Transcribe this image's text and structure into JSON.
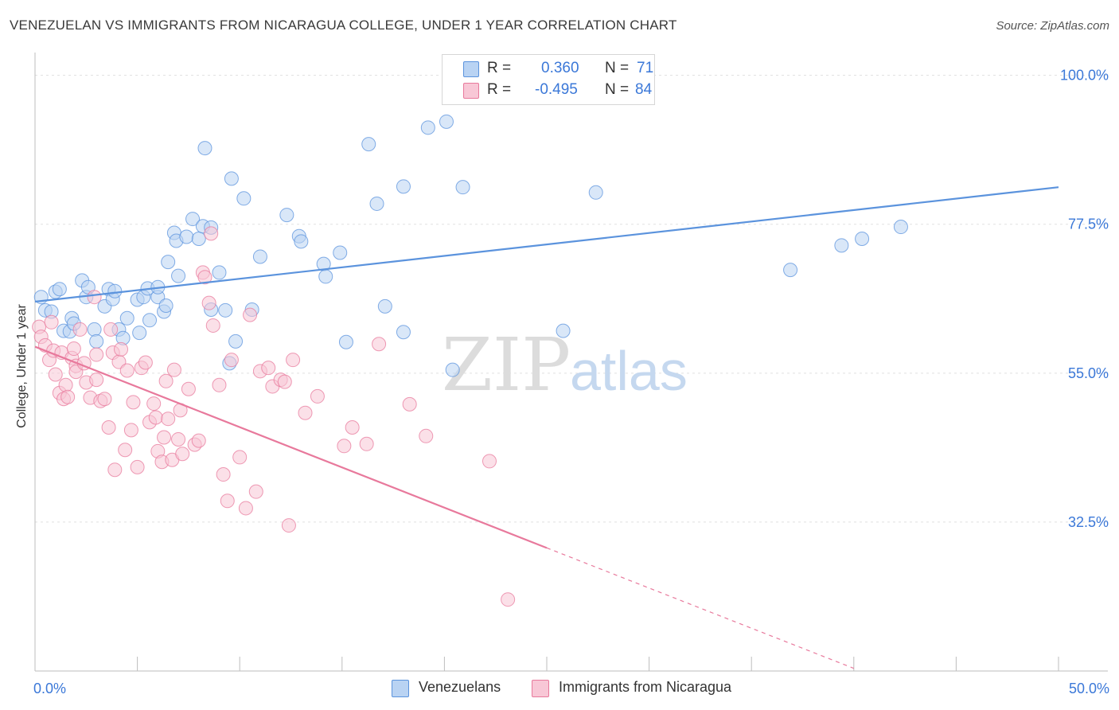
{
  "title": "VENEZUELAN VS IMMIGRANTS FROM NICARAGUA COLLEGE, UNDER 1 YEAR CORRELATION CHART",
  "source": "Source: ZipAtlas.com",
  "watermark": {
    "zip": "ZIP",
    "atlas": "atlas"
  },
  "legend": {
    "rows": [
      {
        "r_label": "R =",
        "r_value": "0.360",
        "n_label": "N =",
        "n_value": "71",
        "color": "#5b93dd",
        "fill": "#b9d3f3"
      },
      {
        "r_label": "R =",
        "r_value": "-0.495",
        "n_label": "N =",
        "n_value": "84",
        "color": "#e8799c",
        "fill": "#f8c7d6"
      }
    ]
  },
  "bottom_legend": [
    {
      "label": "Venezuelans",
      "fill": "#b9d3f3",
      "stroke": "#5b93dd"
    },
    {
      "label": "Immigrants from Nicaragua",
      "fill": "#f8c7d6",
      "stroke": "#e8799c"
    }
  ],
  "chart_data": {
    "type": "scatter",
    "title": "VENEZUELAN VS IMMIGRANTS FROM NICARAGUA COLLEGE, UNDER 1 YEAR CORRELATION CHART",
    "xlabel": "",
    "ylabel": "College, Under 1 year",
    "xlim": [
      0,
      50
    ],
    "ylim": [
      10,
      102
    ],
    "x_tick_labels": [
      {
        "value": 0,
        "label": "0.0%"
      },
      {
        "value": 50,
        "label": "50.0%"
      }
    ],
    "y_tick_labels": [
      {
        "value": 100,
        "label": "100.0%"
      },
      {
        "value": 77.5,
        "label": "77.5%"
      },
      {
        "value": 55,
        "label": "55.0%"
      },
      {
        "value": 32.5,
        "label": "32.5%"
      }
    ],
    "grid": "horizontal dashed",
    "series": [
      {
        "name": "Venezuelans",
        "color": "#5b93dd",
        "fill": "#b9d3f3",
        "trend": {
          "x": [
            0,
            50
          ],
          "y": [
            65.8,
            83.1
          ]
        },
        "points": [
          [
            0.3,
            66.5
          ],
          [
            0.5,
            64.5
          ],
          [
            0.8,
            64.3
          ],
          [
            1.0,
            67.3
          ],
          [
            1.2,
            67.7
          ],
          [
            1.4,
            61.4
          ],
          [
            1.7,
            61.3
          ],
          [
            1.8,
            63.3
          ],
          [
            1.9,
            62.5
          ],
          [
            2.3,
            69.0
          ],
          [
            2.5,
            66.5
          ],
          [
            2.6,
            68.0
          ],
          [
            2.9,
            61.6
          ],
          [
            3.0,
            59.8
          ],
          [
            3.4,
            65.1
          ],
          [
            3.6,
            67.7
          ],
          [
            3.8,
            66.2
          ],
          [
            3.9,
            67.4
          ],
          [
            4.1,
            61.6
          ],
          [
            4.3,
            60.3
          ],
          [
            4.5,
            63.3
          ],
          [
            5.0,
            66.1
          ],
          [
            5.1,
            61.1
          ],
          [
            5.3,
            66.5
          ],
          [
            5.5,
            67.8
          ],
          [
            5.6,
            63.0
          ],
          [
            6.0,
            66.5
          ],
          [
            6.0,
            68.0
          ],
          [
            6.3,
            64.3
          ],
          [
            6.4,
            65.2
          ],
          [
            6.5,
            71.8
          ],
          [
            6.8,
            76.2
          ],
          [
            6.9,
            75.0
          ],
          [
            7.0,
            69.7
          ],
          [
            7.4,
            75.6
          ],
          [
            7.7,
            78.3
          ],
          [
            8.0,
            75.3
          ],
          [
            8.2,
            77.2
          ],
          [
            8.3,
            89.0
          ],
          [
            8.6,
            77.0
          ],
          [
            8.6,
            64.6
          ],
          [
            9.0,
            70.2
          ],
          [
            9.3,
            64.5
          ],
          [
            9.5,
            56.5
          ],
          [
            9.6,
            84.4
          ],
          [
            9.8,
            59.8
          ],
          [
            10.2,
            81.4
          ],
          [
            10.6,
            64.6
          ],
          [
            11.0,
            72.6
          ],
          [
            12.3,
            78.9
          ],
          [
            12.9,
            75.7
          ],
          [
            13.0,
            74.9
          ],
          [
            14.1,
            71.5
          ],
          [
            14.2,
            69.6
          ],
          [
            14.9,
            73.2
          ],
          [
            15.2,
            59.7
          ],
          [
            16.3,
            89.6
          ],
          [
            16.7,
            80.6
          ],
          [
            17.1,
            65.1
          ],
          [
            18.0,
            61.2
          ],
          [
            18.0,
            83.2
          ],
          [
            19.2,
            92.1
          ],
          [
            20.1,
            93.0
          ],
          [
            20.4,
            55.5
          ],
          [
            20.9,
            83.1
          ],
          [
            25.8,
            61.4
          ],
          [
            27.4,
            82.3
          ],
          [
            36.9,
            70.6
          ],
          [
            39.4,
            74.3
          ],
          [
            40.4,
            75.3
          ],
          [
            42.3,
            77.1
          ]
        ]
      },
      {
        "name": "Immigrants from Nicaragua",
        "color": "#e8799c",
        "fill": "#f8c7d6",
        "trend": {
          "x": [
            0,
            25
          ],
          "y": [
            59.0,
            28.6
          ]
        },
        "trend_extension": {
          "x": [
            25,
            40
          ],
          "y": [
            28.6,
            10.4
          ]
        },
        "points": [
          [
            0.2,
            62.0
          ],
          [
            0.3,
            60.5
          ],
          [
            0.5,
            59.2
          ],
          [
            0.7,
            57.0
          ],
          [
            0.8,
            62.7
          ],
          [
            0.9,
            58.4
          ],
          [
            1.0,
            54.8
          ],
          [
            1.2,
            52.0
          ],
          [
            1.3,
            58.1
          ],
          [
            1.4,
            51.1
          ],
          [
            1.5,
            53.2
          ],
          [
            1.6,
            51.4
          ],
          [
            1.8,
            57.3
          ],
          [
            1.9,
            58.7
          ],
          [
            2.0,
            56.1
          ],
          [
            2.0,
            55.2
          ],
          [
            2.2,
            61.6
          ],
          [
            2.4,
            56.5
          ],
          [
            2.5,
            53.6
          ],
          [
            2.7,
            51.3
          ],
          [
            2.9,
            66.5
          ],
          [
            3.0,
            57.8
          ],
          [
            3.0,
            54.0
          ],
          [
            3.2,
            50.8
          ],
          [
            3.4,
            51.1
          ],
          [
            3.6,
            46.8
          ],
          [
            3.7,
            61.6
          ],
          [
            3.8,
            58.1
          ],
          [
            3.9,
            40.4
          ],
          [
            4.1,
            56.7
          ],
          [
            4.2,
            58.6
          ],
          [
            4.4,
            43.4
          ],
          [
            4.5,
            55.4
          ],
          [
            4.7,
            46.4
          ],
          [
            4.8,
            50.6
          ],
          [
            5.0,
            40.8
          ],
          [
            5.2,
            55.8
          ],
          [
            5.4,
            56.6
          ],
          [
            5.6,
            47.6
          ],
          [
            5.8,
            50.4
          ],
          [
            5.9,
            48.3
          ],
          [
            6.0,
            43.2
          ],
          [
            6.2,
            41.6
          ],
          [
            6.3,
            45.3
          ],
          [
            6.4,
            53.8
          ],
          [
            6.5,
            48.1
          ],
          [
            6.7,
            41.9
          ],
          [
            6.8,
            55.5
          ],
          [
            7.0,
            45.0
          ],
          [
            7.1,
            49.4
          ],
          [
            7.2,
            42.8
          ],
          [
            7.5,
            52.6
          ],
          [
            7.8,
            44.2
          ],
          [
            8.0,
            44.8
          ],
          [
            8.2,
            70.2
          ],
          [
            8.3,
            69.5
          ],
          [
            8.5,
            65.6
          ],
          [
            8.6,
            76.1
          ],
          [
            8.7,
            62.2
          ],
          [
            9.0,
            53.2
          ],
          [
            9.2,
            39.7
          ],
          [
            9.4,
            35.7
          ],
          [
            9.6,
            57.0
          ],
          [
            10.0,
            42.3
          ],
          [
            10.3,
            34.6
          ],
          [
            10.5,
            63.8
          ],
          [
            10.8,
            37.1
          ],
          [
            11.0,
            55.3
          ],
          [
            11.4,
            55.8
          ],
          [
            11.6,
            53.0
          ],
          [
            12.0,
            54.0
          ],
          [
            12.2,
            53.7
          ],
          [
            12.4,
            32.0
          ],
          [
            12.6,
            57.0
          ],
          [
            13.2,
            49.0
          ],
          [
            13.8,
            51.5
          ],
          [
            15.1,
            44.0
          ],
          [
            15.5,
            46.8
          ],
          [
            16.2,
            44.3
          ],
          [
            16.8,
            59.4
          ],
          [
            18.3,
            50.3
          ],
          [
            19.1,
            45.5
          ],
          [
            22.2,
            41.7
          ],
          [
            23.1,
            20.8
          ]
        ]
      }
    ]
  }
}
